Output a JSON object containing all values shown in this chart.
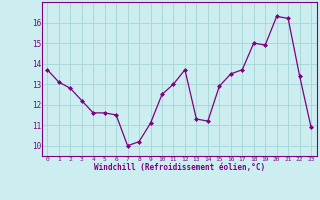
{
  "x": [
    0,
    1,
    2,
    3,
    4,
    5,
    6,
    7,
    8,
    9,
    10,
    11,
    12,
    13,
    14,
    15,
    16,
    17,
    18,
    19,
    20,
    21,
    22,
    23
  ],
  "y": [
    13.7,
    13.1,
    12.8,
    12.2,
    11.6,
    11.6,
    11.5,
    10.0,
    10.2,
    11.1,
    12.5,
    13.0,
    13.7,
    11.3,
    11.2,
    12.9,
    13.5,
    13.7,
    15.0,
    14.9,
    16.3,
    16.2,
    13.4,
    10.9
  ],
  "line_color": "#800080",
  "marker": "D",
  "markersize": 2,
  "linewidth": 0.9,
  "bg_color": "#cceef0",
  "grid_color": "#aad8d8",
  "xlabel": "Windchill (Refroidissement éolien,°C)",
  "xlabel_color": "#800080",
  "tick_color": "#800080",
  "ylim": [
    9.5,
    17.0
  ],
  "xlim": [
    -0.5,
    23.5
  ],
  "yticks": [
    10,
    11,
    12,
    13,
    14,
    15,
    16
  ],
  "xticks": [
    0,
    1,
    2,
    3,
    4,
    5,
    6,
    7,
    8,
    9,
    10,
    11,
    12,
    13,
    14,
    15,
    16,
    17,
    18,
    19,
    20,
    21,
    22,
    23
  ]
}
